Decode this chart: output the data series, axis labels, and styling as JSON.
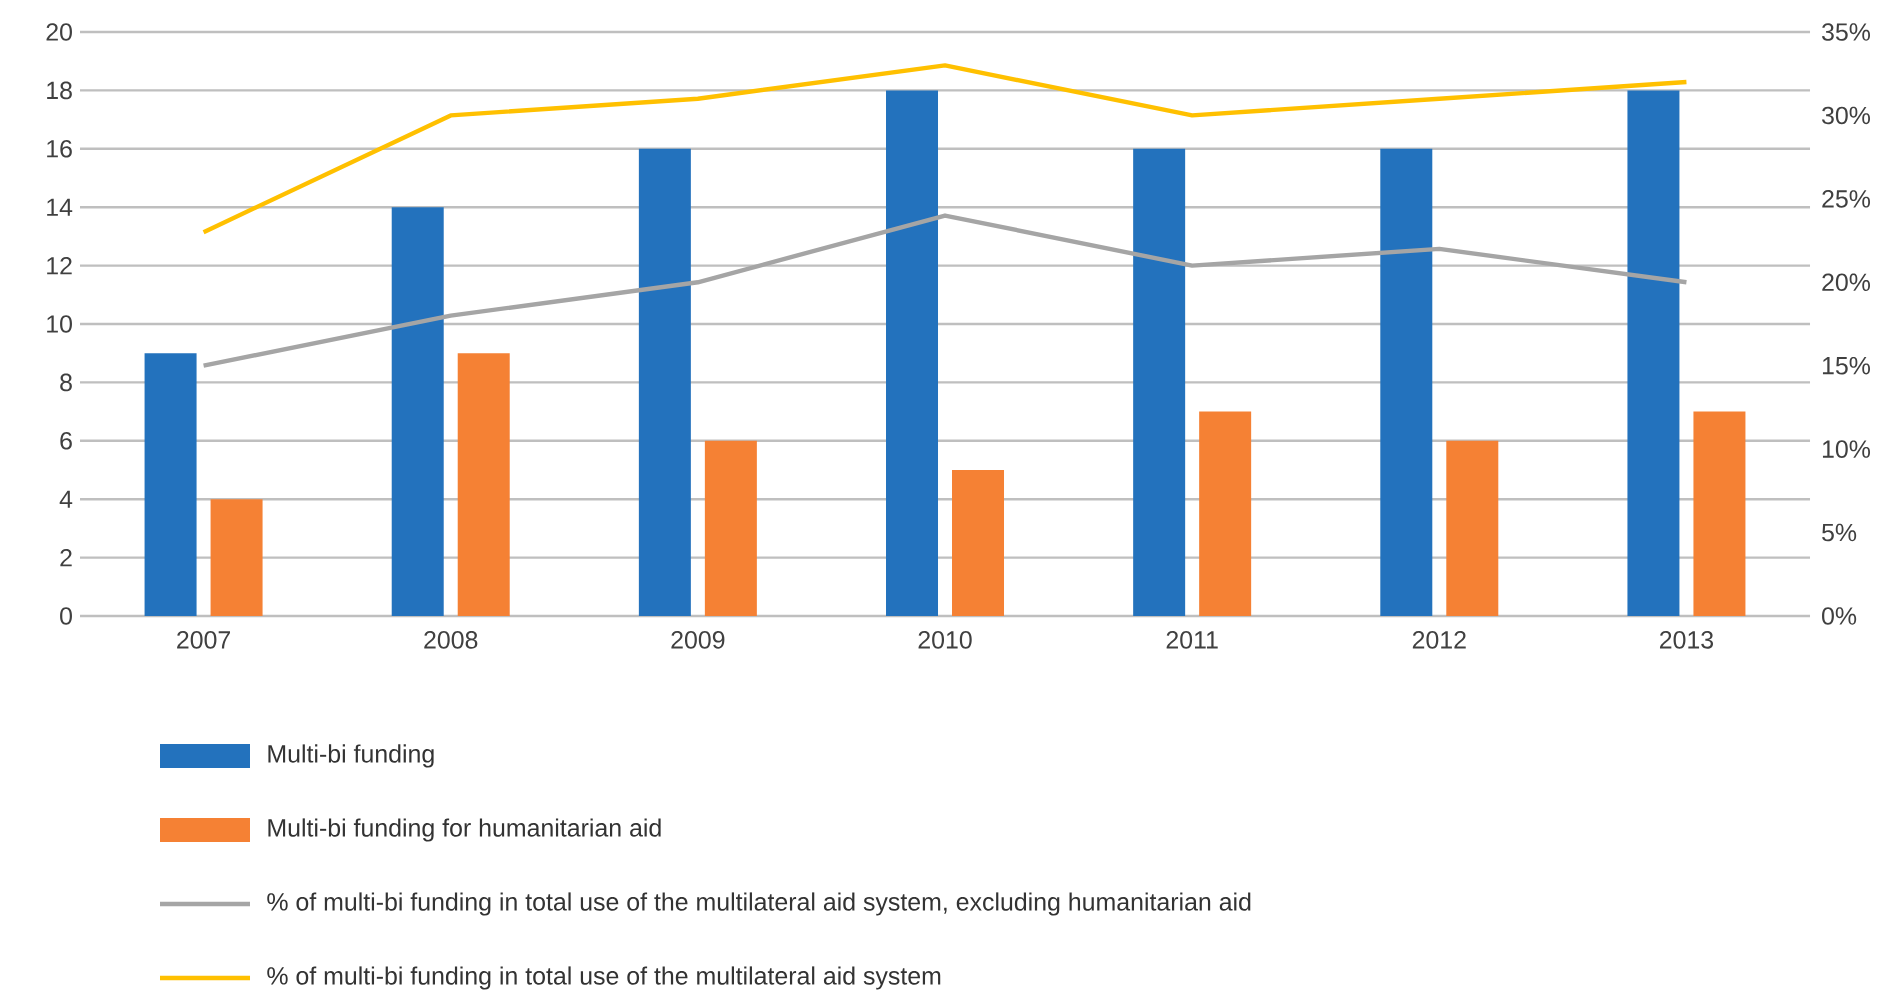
{
  "chart_data": {
    "type": "bar",
    "categories": [
      "2007",
      "2008",
      "2009",
      "2010",
      "2011",
      "2012",
      "2013"
    ],
    "series": [
      {
        "name": "Multi-bi funding",
        "color": "#2372bd",
        "values": [
          9,
          14,
          16,
          18,
          16,
          16,
          18
        ]
      },
      {
        "name": "Multi-bi funding for humanitarian aid",
        "color": "#f58134",
        "values": [
          4,
          9,
          6,
          5,
          7,
          6,
          7
        ]
      },
      {
        "name": "% of multi-bi funding in total use of the multilateral aid system, excluding humanitarian aid",
        "type": "line",
        "axis": "y2",
        "color": "#a5a5a5",
        "values": [
          15,
          18,
          20,
          24,
          21,
          22,
          20
        ]
      },
      {
        "name": "% of multi-bi funding in total use of the multilateral aid system",
        "type": "line",
        "axis": "y2",
        "color": "#ffc000",
        "values": [
          23,
          30,
          31,
          33,
          30,
          31,
          32
        ]
      }
    ],
    "ylim": [
      0,
      20
    ],
    "yticks": [
      0,
      2,
      4,
      6,
      8,
      10,
      12,
      14,
      16,
      18,
      20
    ],
    "y2lim": [
      0,
      35
    ],
    "y2ticks": [
      {
        "value": 0,
        "label": "0%"
      },
      {
        "value": 5,
        "label": "5%"
      },
      {
        "value": 10,
        "label": "10%"
      },
      {
        "value": 15,
        "label": "15%"
      },
      {
        "value": 20,
        "label": "20%"
      },
      {
        "value": 25,
        "label": "25%"
      },
      {
        "value": 30,
        "label": "30%"
      },
      {
        "value": 35,
        "label": "35%"
      }
    ],
    "grid": "y",
    "legend": "bottom",
    "marker": "none",
    "line_style": "solid"
  }
}
